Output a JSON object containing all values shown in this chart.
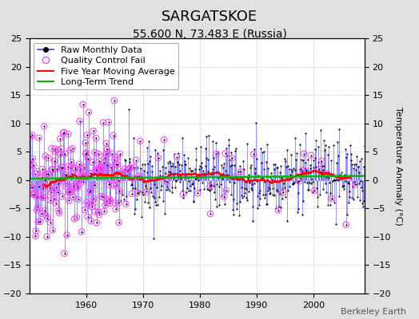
{
  "title": "SARGATSKOE",
  "subtitle": "55.600 N, 73.483 E (Russia)",
  "ylabel": "Temperature Anomaly (°C)",
  "attribution": "Berkeley Earth",
  "ylim": [
    -20,
    25
  ],
  "yticks": [
    -20,
    -15,
    -10,
    -5,
    0,
    5,
    10,
    15,
    20,
    25
  ],
  "xlim": [
    1950,
    2009
  ],
  "xticks": [
    1960,
    1970,
    1980,
    1990,
    2000
  ],
  "start_year": 1950.0,
  "end_year": 2008.99,
  "n_months": 708,
  "raw_color": "#4444ff",
  "qc_color": "#ff44ff",
  "moving_avg_color": "#ff0000",
  "trend_color": "#00bb00",
  "background_color": "#e0e0e0",
  "plot_bg_color": "#ffffff",
  "grid_color": "#cccccc",
  "title_fontsize": 13,
  "subtitle_fontsize": 10,
  "ylabel_fontsize": 8,
  "legend_fontsize": 8,
  "tick_fontsize": 8,
  "seed": 42,
  "trend_slope": 0.008,
  "trend_intercept": 0.5,
  "noise_std": 3.2
}
